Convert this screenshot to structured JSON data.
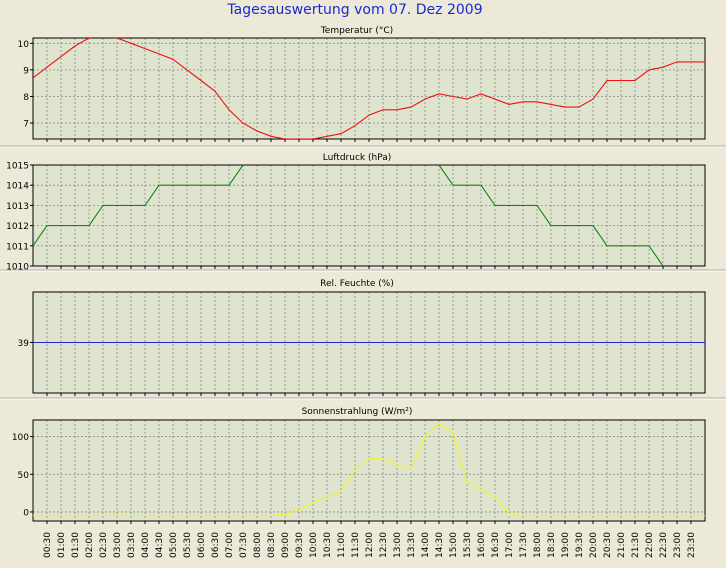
{
  "title": "Tagesauswertung vom 07. Dez 2009",
  "colors": {
    "background": "#ece9d8",
    "plot_background": "#dfe4cf",
    "title": "#1a2ad0",
    "temperature": "#ee1111",
    "pressure": "#118811",
    "humidity": "#1f2bcc",
    "radiation": "#f4f21c"
  },
  "chart_data": [
    {
      "type": "line",
      "title": "Temperatur (°C)",
      "ylim": [
        6.4,
        10.2
      ],
      "yticks": [
        7,
        8,
        9,
        10
      ],
      "grid": true,
      "series": [
        {
          "x": [
            "00:00",
            "00:30",
            "01:00",
            "01:30",
            "02:00",
            "02:30",
            "03:00",
            "03:30",
            "04:00",
            "04:30",
            "05:00",
            "05:30",
            "06:00",
            "06:30",
            "07:00",
            "07:30",
            "08:00",
            "08:30",
            "09:00",
            "09:30",
            "10:00",
            "10:30",
            "11:00",
            "11:30",
            "12:00",
            "12:30",
            "13:00",
            "13:30",
            "14:00",
            "14:30",
            "15:00",
            "15:30",
            "16:00",
            "16:30",
            "17:00",
            "17:30",
            "18:00",
            "18:30",
            "19:00",
            "19:30",
            "20:00",
            "20:30",
            "21:00",
            "21:30",
            "22:00",
            "22:30",
            "23:00",
            "23:30",
            "24:00"
          ],
          "values": [
            8.7,
            9.1,
            9.5,
            9.9,
            10.2,
            10.3,
            10.2,
            10.0,
            9.8,
            9.6,
            9.4,
            9.0,
            8.6,
            8.2,
            7.5,
            7.0,
            6.7,
            6.5,
            6.4,
            6.4,
            6.4,
            6.5,
            6.6,
            6.9,
            7.3,
            7.5,
            7.5,
            7.6,
            7.9,
            8.1,
            8.0,
            7.9,
            8.1,
            7.9,
            7.7,
            7.8,
            7.8,
            7.7,
            7.6,
            7.6,
            7.9,
            8.6,
            8.6,
            8.6,
            9.0,
            9.1,
            9.3,
            9.3,
            9.3
          ]
        }
      ]
    },
    {
      "type": "line",
      "title": "Luftdruck (hPa)",
      "ylim": [
        1010,
        1015
      ],
      "yticks": [
        1010,
        1011,
        1012,
        1013,
        1014,
        1015
      ],
      "grid": true,
      "series": [
        {
          "x": [
            "00:00",
            "00:30",
            "01:00",
            "01:30",
            "02:00",
            "02:30",
            "03:00",
            "03:30",
            "04:00",
            "04:30",
            "05:00",
            "05:30",
            "06:00",
            "06:30",
            "07:00",
            "07:30",
            "08:00",
            "08:30",
            "09:00",
            "09:30",
            "10:00",
            "10:30",
            "11:00",
            "11:30",
            "12:00",
            "12:30",
            "13:00",
            "13:30",
            "14:00",
            "14:30",
            "15:00",
            "15:30",
            "16:00",
            "16:30",
            "17:00",
            "17:30",
            "18:00",
            "18:30",
            "19:00",
            "19:30",
            "20:00",
            "20:30",
            "21:00",
            "21:30",
            "22:00",
            "22:30",
            "23:00",
            "23:30",
            "24:00"
          ],
          "values": [
            1011,
            1012,
            1012,
            1012,
            1012,
            1013,
            1013,
            1013,
            1013,
            1014,
            1014,
            1014,
            1014,
            1014,
            1014,
            1015,
            1015.5,
            1015.5,
            1015.5,
            1015.5,
            1015.5,
            1015.5,
            1015.5,
            1015.5,
            1015.5,
            1015.5,
            1015.5,
            1015.5,
            1015.5,
            1015,
            1014,
            1014,
            1014,
            1013,
            1013,
            1013,
            1013,
            1012,
            1012,
            1012,
            1012,
            1011,
            1011,
            1011,
            1011,
            1010,
            1009.5,
            1009.5,
            1009.5
          ]
        }
      ]
    },
    {
      "type": "line",
      "title": "Rel. Feuchte (%)",
      "ylim": [
        38,
        40
      ],
      "yticks": [
        39
      ],
      "grid": true,
      "series": [
        {
          "x": [
            "00:00",
            "24:00"
          ],
          "values": [
            39,
            39
          ]
        }
      ]
    },
    {
      "type": "line",
      "title": "Sonnenstrahlung (W/m²)",
      "ylim": [
        -12,
        122
      ],
      "yticks": [
        0,
        50,
        100
      ],
      "grid": true,
      "series": [
        {
          "x": [
            "00:00",
            "01:00",
            "02:00",
            "03:00",
            "04:00",
            "05:00",
            "06:00",
            "07:00",
            "08:00",
            "08:30",
            "09:00",
            "09:30",
            "10:00",
            "10:30",
            "11:00",
            "11:30",
            "12:00",
            "12:30",
            "13:00",
            "13:30",
            "14:00",
            "14:30",
            "15:00",
            "15:30",
            "16:00",
            "16:30",
            "17:00",
            "17:30",
            "18:00",
            "19:00",
            "20:00",
            "21:00",
            "22:00",
            "23:00",
            "24:00"
          ],
          "values": [
            -5,
            -5,
            -5,
            -4,
            -5,
            -5,
            -5,
            -5,
            -5,
            -5,
            -3,
            3,
            12,
            20,
            28,
            55,
            72,
            70,
            63,
            57,
            100,
            117,
            105,
            40,
            30,
            20,
            -2,
            -5,
            -5,
            -5,
            -5,
            -5,
            -5,
            -5,
            -5
          ]
        }
      ]
    }
  ],
  "x_tick_labels": [
    "00:30",
    "01:00",
    "01:30",
    "02:00",
    "02:30",
    "03:00",
    "03:30",
    "04:00",
    "04:30",
    "05:00",
    "05:30",
    "06:00",
    "06:30",
    "07:00",
    "07:30",
    "08:00",
    "08:30",
    "09:00",
    "09:30",
    "10:00",
    "10:30",
    "11:00",
    "11:30",
    "12:00",
    "12:30",
    "13:00",
    "13:30",
    "14:00",
    "14:30",
    "15:00",
    "15:30",
    "16:00",
    "16:30",
    "17:00",
    "17:30",
    "18:00",
    "18:30",
    "19:00",
    "19:30",
    "20:00",
    "20:30",
    "21:00",
    "21:30",
    "22:00",
    "22:30",
    "23:00",
    "23:30"
  ]
}
